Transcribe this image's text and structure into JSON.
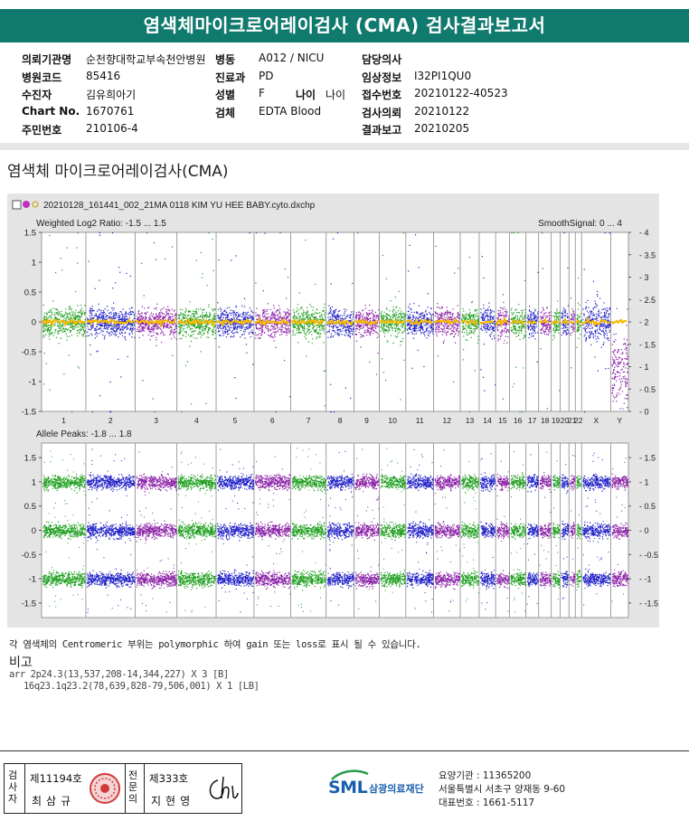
{
  "title": "염색체마이크로어레이검사 (CMA) 검사결과보고서",
  "info": {
    "col1": [
      {
        "label": "의뢰기관명",
        "value": "순천향대학교부속천안병원"
      },
      {
        "label": "병원코드",
        "value": "85416"
      },
      {
        "label": "수진자",
        "value": "김유희아기"
      },
      {
        "label": "Chart No.",
        "value": "1670761"
      },
      {
        "label": "주민번호",
        "value": "210106-4"
      }
    ],
    "col2": [
      {
        "label": "병동",
        "value": "A012 / NICU"
      },
      {
        "label": "진료과",
        "value": "PD"
      },
      {
        "label": "성별",
        "value": "F"
      },
      {
        "label": "검체",
        "value": "EDTA Blood"
      }
    ],
    "age": {
      "label": "나이",
      "value": "나이"
    },
    "col3": [
      {
        "label": "담당의사",
        "value": ""
      },
      {
        "label": "임상정보",
        "value": "I32PI1QU0"
      },
      {
        "label": "접수번호",
        "value": "20210122-40523"
      },
      {
        "label": "검사의뢰",
        "value": "20210122"
      },
      {
        "label": "결과보고",
        "value": "20210205"
      }
    ]
  },
  "section_title": "염색체 마이크로어레이검사(CMA)",
  "chart_header": {
    "filename": "20210128_161441_002_21MA 0118 KIM YU HEE BABY.cyto.dxchp"
  },
  "chart_data": [
    {
      "type": "scatter",
      "title": "Weighted Log2 Ratio: -1.5 ... 1.5",
      "right_title": "SmoothSignal: 0 ... 4",
      "ylim": [
        -1.5,
        1.5
      ],
      "yticks": [
        "1.5",
        "1",
        "0.5",
        "0",
        "-0.5",
        "-1",
        "-1.5"
      ],
      "right_ylim": [
        0,
        4
      ],
      "right_yticks": [
        "4",
        "3.5",
        "3",
        "2.5",
        "2",
        "1.5",
        "1",
        "0.5",
        "0"
      ],
      "categories": [
        "1",
        "2",
        "3",
        "4",
        "5",
        "6",
        "7",
        "8",
        "9",
        "10",
        "11",
        "12",
        "13",
        "14",
        "15",
        "16",
        "17",
        "18",
        "19",
        "20",
        "21",
        "22",
        "X",
        "Y"
      ],
      "smooth_signal": 2,
      "colors": {
        "green": "#1c9e1c",
        "blue": "#1f1fc8",
        "purple": "#8a1fa6",
        "orange": "#f5b800"
      }
    },
    {
      "type": "scatter",
      "title": "Allele Peaks: -1.8 ... 1.8",
      "ylim": [
        -1.8,
        1.8
      ],
      "yticks": [
        "1.5",
        "1",
        "0.5",
        "0",
        "-0.5",
        "-1",
        "-1.5"
      ],
      "right_yticks": [
        "1.5",
        "1",
        "0.5",
        "0",
        "-0.5",
        "-1",
        "-1.5"
      ],
      "bands": [
        1,
        0,
        -1
      ],
      "categories": [
        "1",
        "2",
        "3",
        "4",
        "5",
        "6",
        "7",
        "8",
        "9",
        "10",
        "11",
        "12",
        "13",
        "14",
        "15",
        "16",
        "17",
        "18",
        "19",
        "20",
        "21",
        "22",
        "X",
        "Y"
      ]
    }
  ],
  "note": "각 염색체의 Centromeric 부위는 polymorphic 하여 gain 또는 loss로 표시 될 수 있습니다.",
  "remarks": {
    "title": "비고",
    "lines": [
      "arr 2p24.3(13,537,208-14,344,227) X 3 [B]",
      "16q23.1q23.2(78,639,828-79,506,001) X 1 [LB]"
    ]
  },
  "footer": {
    "sig1_label": "검사자",
    "sig1_num": "제11194호",
    "sig1_name": "최삼규",
    "sig2_label": "전문의",
    "sig2_num": "제333호",
    "sig2_name": "지현영",
    "logo_text": "SML",
    "org": "삼광의료재단",
    "lab_lines": [
      "요양기관 : 11365200",
      "서울특별시 서초구 양재동 9-60",
      "대표번호 : 1661-5117"
    ]
  }
}
